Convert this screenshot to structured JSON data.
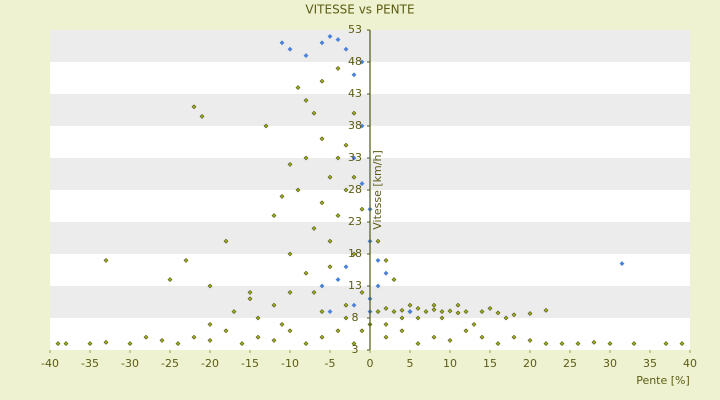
{
  "chart_data": {
    "type": "scatter",
    "title": "VITESSE vs PENTE",
    "x_label": "Pente [%]",
    "y_label": "Vitesse [km/h]",
    "xlim": [
      -40,
      40
    ],
    "xticks": [
      -40,
      -35,
      -30,
      -25,
      -20,
      -15,
      -10,
      -5,
      0,
      5,
      10,
      15,
      20,
      25,
      30,
      35,
      40
    ],
    "ylim": [
      3,
      53
    ],
    "yticks": [
      3,
      8,
      13,
      18,
      23,
      28,
      33,
      38,
      43,
      48,
      53
    ],
    "grid": true,
    "series": [
      {
        "name": "Pente",
        "color": "#a2ad22",
        "x": [
          1,
          2,
          3,
          4,
          5,
          6,
          7,
          8,
          9,
          10,
          11,
          12,
          14,
          16,
          18,
          20,
          22,
          -39,
          -38,
          -35,
          -33,
          -30,
          -28,
          -26,
          -24,
          -22,
          -20,
          -18,
          -16,
          -14,
          -12,
          -10,
          -8,
          -6,
          -4,
          -2,
          2,
          4,
          6,
          8,
          10,
          12,
          14,
          16,
          18,
          20,
          22,
          24,
          26,
          28,
          30,
          33,
          37,
          39,
          -13,
          -22,
          -21,
          -33,
          -23,
          -18,
          -12,
          -11,
          -10,
          -9,
          -8,
          -7,
          -6,
          -5,
          -4,
          -3,
          -6,
          -7,
          -5,
          -4,
          -3,
          -2,
          -1,
          -5,
          -8,
          -10,
          -12,
          -15,
          -17,
          -20,
          -2,
          -1,
          -3,
          -9,
          -8,
          -6,
          -4,
          -10,
          -7,
          -2,
          1,
          2,
          3,
          -25,
          -20,
          -15,
          -14,
          -11,
          -6,
          -3,
          -1,
          0,
          2,
          4,
          5,
          6,
          8,
          9,
          11,
          13,
          15,
          17
        ],
        "y": [
          9,
          9.5,
          9,
          9.2,
          9,
          9.5,
          9,
          9.3,
          9,
          9.1,
          8.8,
          9,
          9,
          8.8,
          8.5,
          8.7,
          9.2,
          4,
          4,
          4,
          4.2,
          4,
          5,
          4.5,
          4,
          5,
          4.5,
          6,
          4,
          5,
          4.5,
          6,
          4,
          5,
          6,
          4,
          5,
          6,
          4,
          5,
          4.5,
          6,
          5,
          4,
          5,
          4.5,
          4,
          4,
          4,
          4.2,
          4,
          4,
          4,
          4,
          38,
          41,
          39.5,
          17,
          17,
          20,
          24,
          27,
          32,
          44,
          42,
          40,
          36,
          30,
          33,
          28,
          26,
          22,
          20,
          24,
          35,
          30,
          25,
          16,
          15,
          12,
          10,
          11,
          9,
          7,
          18,
          12,
          10,
          28,
          33,
          45,
          47,
          18,
          12,
          40,
          20,
          17,
          14,
          14,
          13,
          12,
          8,
          7,
          9,
          8,
          6,
          7,
          7,
          8,
          10,
          8,
          10,
          8,
          10,
          7,
          9.5,
          8
        ]
      },
      {
        "name": "Vitesse",
        "color": "#4a80d6",
        "x": [
          -11,
          -10,
          -6,
          -5,
          -4,
          -8,
          -3,
          -1,
          -2,
          -1,
          -2,
          -1,
          0,
          0,
          1,
          2,
          1,
          0,
          -4,
          -6,
          -3,
          31.5,
          0,
          -2,
          5,
          -5
        ],
        "y": [
          51,
          50,
          51,
          52,
          51.5,
          49,
          50,
          48,
          46,
          38,
          33,
          29,
          25,
          20,
          17,
          15,
          13,
          11,
          14,
          13,
          16,
          16.5,
          9,
          10,
          9,
          9
        ]
      }
    ]
  }
}
